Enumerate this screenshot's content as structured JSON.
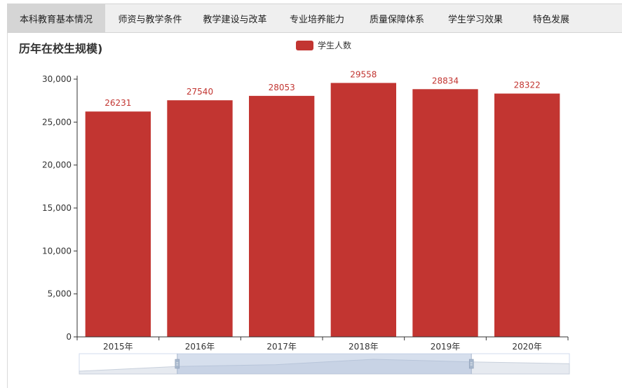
{
  "tabs": [
    {
      "label": "本科教育基本情况",
      "active": true
    },
    {
      "label": "师资与教学条件",
      "active": false
    },
    {
      "label": "教学建设与改革",
      "active": false
    },
    {
      "label": "专业培养能力",
      "active": false
    },
    {
      "label": "质量保障体系",
      "active": false
    },
    {
      "label": "学生学习效果",
      "active": false
    },
    {
      "label": "特色发展",
      "active": false
    }
  ],
  "chart_data": {
    "type": "bar",
    "title": "历年在校生规模)",
    "categories": [
      "2015年",
      "2016年",
      "2017年",
      "2018年",
      "2019年",
      "2020年"
    ],
    "series": [
      {
        "name": "学生人数",
        "values": [
          26231,
          27540,
          28053,
          29558,
          28834,
          28322
        ]
      }
    ],
    "ylim": [
      0,
      30000
    ],
    "yticks": [
      "0",
      "5,000",
      "10,000",
      "15,000",
      "20,000",
      "25,000",
      "30,000"
    ],
    "yticks_values": [
      0,
      5000,
      10000,
      15000,
      20000,
      25000,
      30000
    ],
    "legend_position": "top-center",
    "grid": false,
    "bar_color": "#c23531",
    "data_zoom": {
      "start": 0.2,
      "end": 0.8
    }
  }
}
